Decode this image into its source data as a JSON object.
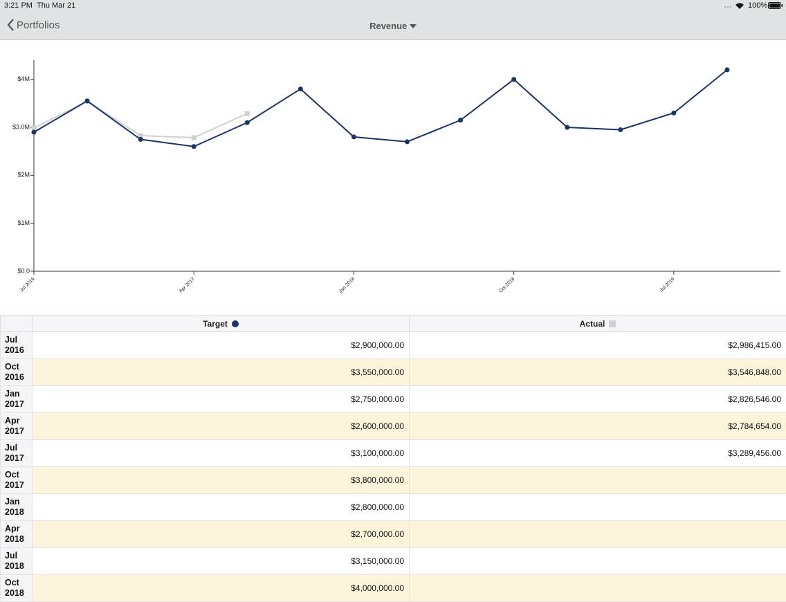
{
  "status_bar": {
    "time": "3:21 PM",
    "date": "Thu Mar 21",
    "battery": "100%"
  },
  "nav_bar": {
    "back": "Portfolios",
    "title": "Revenue"
  },
  "chart_data": {
    "type": "line",
    "categories": [
      "Jul 2016",
      null,
      null,
      "Apr 2017",
      null,
      null,
      "Jan 2018",
      null,
      null,
      "Oct 2018",
      null,
      null,
      "Jul 2019",
      null
    ],
    "series": [
      {
        "name": "Target",
        "color": "#1b3461",
        "marker": "circle",
        "values": [
          2900000,
          3550000,
          2750000,
          2600000,
          3100000,
          3800000,
          2800000,
          2700000,
          3150000,
          4000000,
          3000000,
          2950000,
          3300000,
          4200000
        ]
      },
      {
        "name": "Actual",
        "color": "#cfd0d4",
        "marker": "square",
        "values": [
          2986415,
          3546848,
          2826546,
          2784654,
          3289456,
          null,
          null,
          null,
          null,
          null,
          null,
          null,
          null,
          null
        ]
      }
    ],
    "ylim": [
      0,
      4400000
    ],
    "yticks": [
      {
        "value": 0,
        "label": "$0.0"
      },
      {
        "value": 1000000,
        "label": "$1M"
      },
      {
        "value": 2000000,
        "label": "$2M"
      },
      {
        "value": 3000000,
        "label": "$3.0M"
      },
      {
        "value": 4000000,
        "label": "$4M"
      }
    ]
  },
  "table": {
    "rows": [
      {
        "label": "Jul 2016",
        "target": "$2,900,000.00",
        "actual": "$2,986,415.00"
      },
      {
        "label": "Oct 2016",
        "target": "$3,550,000.00",
        "actual": "$3,546,848.00"
      },
      {
        "label": "Jan 2017",
        "target": "$2,750,000.00",
        "actual": "$2,826,546.00"
      },
      {
        "label": "Apr 2017",
        "target": "$2,600,000.00",
        "actual": "$2,784,654.00"
      },
      {
        "label": "Jul 2017",
        "target": "$3,100,000.00",
        "actual": "$3,289,456.00"
      },
      {
        "label": "Oct 2017",
        "target": "$3,800,000.00",
        "actual": null
      },
      {
        "label": "Jan 2018",
        "target": "$2,800,000.00",
        "actual": null
      },
      {
        "label": "Apr 2018",
        "target": "$2,700,000.00",
        "actual": null
      },
      {
        "label": "Jul 2018",
        "target": "$3,150,000.00",
        "actual": null
      },
      {
        "label": "Oct 2018",
        "target": "$4,000,000.00",
        "actual": null
      }
    ]
  }
}
